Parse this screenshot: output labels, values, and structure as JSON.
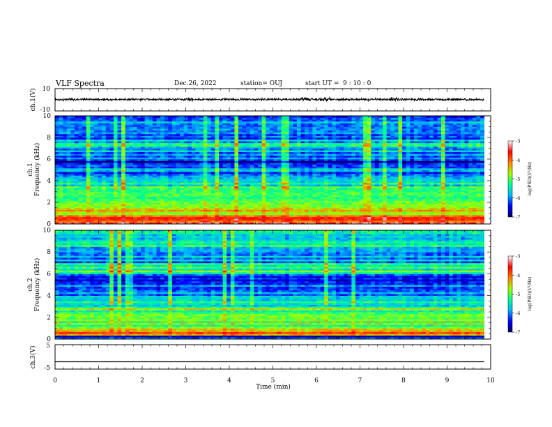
{
  "header": {
    "title": "VLF Spectra",
    "date": "Dec.26, 2022",
    "station": "station= OUJ",
    "start_label": "start  UT =",
    "start_time": "9 : 10 : 0"
  },
  "chart_data": [
    {
      "type": "line",
      "panel": "ch1-waveform",
      "ylabel": "ch.1(V)",
      "ylim": [
        -10,
        10
      ],
      "yticks": [
        "10",
        "-10"
      ],
      "xlim": [
        0,
        10
      ],
      "x_end": 9.85,
      "baseline": 0.3,
      "color": "#000000",
      "noise_amplitude_range": [
        0.8,
        2.5
      ],
      "bursts_min": [
        3.1,
        5.8,
        6.2,
        7.8
      ]
    },
    {
      "type": "heatmap",
      "panel": "ch1-spectrogram",
      "ylabel": "ch.1\nFrequency (kHz)",
      "ylabel_top": "ch.1",
      "ylabel_bottom": "Frequency (kHz)",
      "ylim": [
        0,
        10
      ],
      "yticks": [
        "0",
        "2",
        "4",
        "6",
        "8",
        "10"
      ],
      "xlim": [
        0,
        10
      ],
      "x_end": 9.85,
      "colorbar": {
        "label": "log(PSD)(V²/Hz)",
        "range": [
          -7,
          -3
        ],
        "ticks": [
          "-3",
          "-4",
          "-5",
          "-6",
          "-7"
        ],
        "colormap": [
          "#000066",
          "#0000ff",
          "#00b4ff",
          "#00ff90",
          "#a0ff00",
          "#ff8000",
          "#ff0000",
          "#ffffff"
        ]
      },
      "bands": [
        {
          "f": [
            0.0,
            0.2
          ],
          "level": -3.4
        },
        {
          "f": [
            0.2,
            0.6
          ],
          "level": -4.0
        },
        {
          "f": [
            0.6,
            1.2
          ],
          "level": -4.5
        },
        {
          "f": [
            1.2,
            2.0
          ],
          "level": -4.6
        },
        {
          "f": [
            2.0,
            3.0
          ],
          "level": -4.9
        },
        {
          "f": [
            3.0,
            4.0
          ],
          "level": -5.4
        },
        {
          "f": [
            4.0,
            4.8
          ],
          "level": -6.1
        },
        {
          "f": [
            4.8,
            5.2
          ],
          "level": -5.3
        },
        {
          "f": [
            5.2,
            5.8
          ],
          "level": -6.6
        },
        {
          "f": [
            5.8,
            7.0
          ],
          "level": -6.0
        },
        {
          "f": [
            7.0,
            7.5
          ],
          "level": -5.5
        },
        {
          "f": [
            7.5,
            10.0
          ],
          "level": -6.0
        }
      ]
    },
    {
      "type": "heatmap",
      "panel": "ch2-spectrogram",
      "ylabel": "ch.2\nFrequency (kHz)",
      "ylabel_top": "ch.2",
      "ylabel_bottom": "Frequency (kHz)",
      "ylim": [
        0,
        10
      ],
      "yticks": [
        "0",
        "2",
        "4",
        "6",
        "8",
        "10"
      ],
      "xlim": [
        0,
        10
      ],
      "x_end": 9.85,
      "colorbar": {
        "label": "log(PSD)(V²/Hz)",
        "range": [
          -7,
          -3
        ],
        "ticks": [
          "-3",
          "-4",
          "-5",
          "-6",
          "-7"
        ],
        "colormap": [
          "#000066",
          "#0000ff",
          "#00b4ff",
          "#00ff90",
          "#a0ff00",
          "#ff8000",
          "#ff0000",
          "#ffffff"
        ]
      },
      "bands": [
        {
          "f": [
            0.0,
            0.3
          ],
          "level": -6.3
        },
        {
          "f": [
            0.3,
            1.0
          ],
          "level": -4.3
        },
        {
          "f": [
            1.0,
            2.0
          ],
          "level": -4.9
        },
        {
          "f": [
            2.0,
            3.0
          ],
          "level": -5.0
        },
        {
          "f": [
            3.0,
            4.0
          ],
          "level": -5.5
        },
        {
          "f": [
            4.0,
            5.0
          ],
          "level": -6.0
        },
        {
          "f": [
            5.0,
            6.0
          ],
          "level": -6.3
        },
        {
          "f": [
            6.0,
            7.0
          ],
          "level": -5.2
        },
        {
          "f": [
            7.0,
            8.0
          ],
          "level": -5.8
        },
        {
          "f": [
            8.0,
            10.0
          ],
          "level": -5.5
        }
      ]
    },
    {
      "type": "line",
      "panel": "ch3-waveform",
      "ylabel": "ch.3(V)",
      "ylim": [
        -5,
        5
      ],
      "yticks": [
        "5",
        "-5"
      ],
      "xlim": [
        0,
        10
      ],
      "x_end": 9.85,
      "baseline": -2.0,
      "color": "#000000"
    }
  ],
  "xaxis": {
    "xlabel": "Time  (min)",
    "xlim": [
      0,
      10
    ],
    "ticks": [
      "0",
      "1",
      "2",
      "3",
      "4",
      "5",
      "6",
      "7",
      "8",
      "9",
      "10"
    ]
  }
}
